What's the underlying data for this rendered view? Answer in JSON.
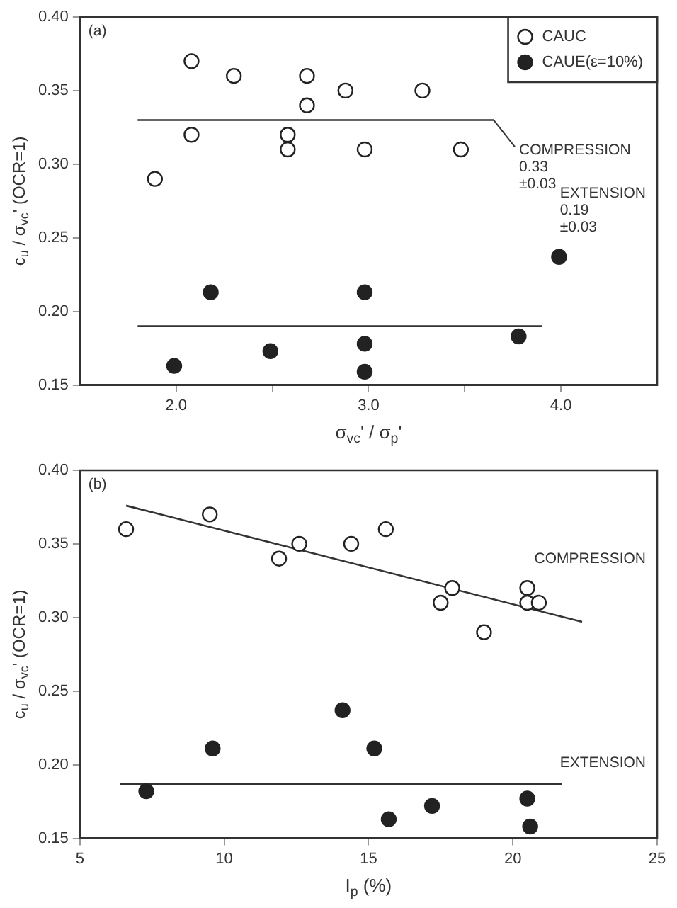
{
  "chart_data": [
    {
      "type": "scatter",
      "xlabel": "σ$_{vc}$' / σ$_{p}$'",
      "ylabel": "c$_{u}$ / σ$_{vc}$' (OCR=1)",
      "xlim": [
        1.5,
        4.5
      ],
      "ylim": [
        0.15,
        0.4
      ],
      "xticks": [
        {
          "value": 2,
          "label": "2.0"
        },
        {
          "value": 2.5,
          "label": null
        },
        {
          "value": 3,
          "label": "3.0"
        },
        {
          "value": 3.5,
          "label": null
        },
        {
          "value": 4,
          "label": "4.0"
        }
      ],
      "yticks": [
        0.15,
        {
          "value": 0.2,
          "label": "0.20"
        },
        0.25,
        {
          "value": 0.3,
          "label": "0.30"
        },
        0.35,
        {
          "value": 0.4,
          "label": "0.40"
        }
      ],
      "grid": false,
      "legend": "top right",
      "marker": "circle",
      "annotations": [
        "(a)",
        {
          "text": "COMPRESSION\n0.33\n±0.03",
          "x": 3.65,
          "y": 0.33
        },
        "EXTENSION\n0.19\n±0.03"
      ],
      "series": [
        {
          "name": "CAUC",
          "color": "#ffffff",
          "x": [
            2.08,
            2.3,
            2.68,
            2.88,
            3.28,
            2.68,
            2.08,
            2.58,
            2.58,
            2.98,
            3.48,
            1.89
          ],
          "values": [
            0.37,
            0.36,
            0.36,
            0.35,
            0.35,
            0.34,
            0.32,
            0.32,
            0.31,
            0.31,
            0.31,
            0.29
          ]
        },
        {
          "name": "CAUE(ε=10%)",
          "color": "#222222",
          "x": [
            2.18,
            2.98,
            3.99,
            1.99,
            2.49,
            2.98,
            2.98,
            3.78
          ],
          "values": [
            0.213,
            0.213,
            0.237,
            0.163,
            0.173,
            0.178,
            0.159,
            0.183
          ]
        },
        {
          "type": "line",
          "marker": "none",
          "color": "#333333",
          "x": [
            1.8,
            3.65
          ],
          "values": [
            0.33,
            0.33
          ]
        },
        {
          "type": "line",
          "marker": "none",
          "color": "#333333",
          "x": [
            1.8,
            3.9
          ],
          "values": [
            0.19,
            0.19
          ]
        }
      ]
    },
    {
      "type": "scatter",
      "xlabel": "I$_{p}$ (%)",
      "ylabel": "c$_{u}$ / σ$_{vc}$' (OCR=1)",
      "xlim": [
        5,
        25
      ],
      "ylim": [
        0.15,
        0.4
      ],
      "xticks": [
        5,
        10,
        15,
        20,
        25
      ],
      "yticks": [
        0.15,
        {
          "value": 0.2,
          "label": "0.20"
        },
        0.25,
        {
          "value": 0.3,
          "label": "0.30"
        },
        0.35,
        {
          "value": 0.4,
          "label": "0.40"
        }
      ],
      "grid": false,
      "marker": "circle",
      "annotations": [
        "(b)",
        "COMPRESSION",
        "EXTENSION"
      ],
      "series": [
        {
          "color": "#ffffff",
          "x": [
            6.6,
            9.5,
            11.9,
            12.6,
            14.4,
            15.6,
            17.9,
            17.5,
            19.0,
            20.5,
            20.5,
            20.9
          ],
          "values": [
            0.36,
            0.37,
            0.34,
            0.35,
            0.35,
            0.36,
            0.32,
            0.31,
            0.29,
            0.32,
            0.31,
            0.31
          ]
        },
        {
          "color": "#222222",
          "x": [
            7.3,
            9.6,
            14.1,
            15.2,
            15.7,
            17.2,
            20.5,
            20.6
          ],
          "values": [
            0.182,
            0.211,
            0.237,
            0.211,
            0.163,
            0.172,
            0.177,
            0.158
          ]
        },
        {
          "type": "line",
          "marker": "none",
          "color": "#333333",
          "x": [
            6.6,
            22.4
          ],
          "values": [
            0.376,
            0.297
          ]
        },
        {
          "type": "line",
          "marker": "none",
          "color": "#333333",
          "x": [
            6.4,
            21.7
          ],
          "values": [
            0.187,
            0.187
          ]
        }
      ]
    }
  ]
}
